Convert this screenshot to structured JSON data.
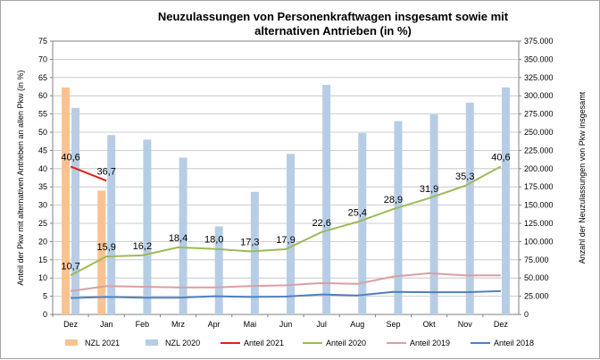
{
  "chart_data": {
    "type": "bar+line",
    "title_line1": "Neuzulassungen von Personenkraftwagen insgesamt sowie mit",
    "title_line2": "alternativen Antrieben (in %)",
    "y_left_label": "Anteil der Pkw mit alternativen Antrieben an allen Pkw (in %)",
    "y_right_label": "Anzahl der Neuzulassungen von Pkw insgesamt",
    "y_left_ticks": [
      "0",
      "5",
      "10",
      "15",
      "20",
      "25",
      "30",
      "35",
      "40",
      "45",
      "50",
      "55",
      "60",
      "65",
      "70",
      "75"
    ],
    "y_right_ticks": [
      "0",
      "25.000",
      "50.000",
      "75.000",
      "100.000",
      "125.000",
      "150.000",
      "175.000",
      "200.000",
      "225.000",
      "250.000",
      "275.000",
      "300.000",
      "325.000",
      "350.000",
      "375.000"
    ],
    "ylim_left": [
      0,
      75
    ],
    "ylim_right": [
      0,
      375000
    ],
    "grid": true,
    "legend_position": "bottom",
    "categories": [
      "Dez",
      "Jan",
      "Feb",
      "Mrz",
      "Apr",
      "Mai",
      "Jun",
      "Jul",
      "Aug",
      "Sep",
      "Okt",
      "Nov",
      "Dez"
    ],
    "bars": [
      {
        "name": "NZL 2021",
        "color": "#f9c290",
        "axis": "right",
        "values": [
          311400,
          169800,
          null,
          null,
          null,
          null,
          null,
          null,
          null,
          null,
          null,
          null,
          null
        ]
      },
      {
        "name": "NZL 2020",
        "color": "#b7cde6",
        "axis": "right",
        "values": [
          283300,
          246000,
          239900,
          215100,
          120800,
          168100,
          220300,
          314900,
          248900,
          265200,
          274300,
          290600,
          311400
        ]
      }
    ],
    "lines": [
      {
        "name": "Anteil 2021",
        "color": "#e02020",
        "axis": "left",
        "values": [
          40.6,
          36.7,
          null,
          null,
          null,
          null,
          null,
          null,
          null,
          null,
          null,
          null,
          null
        ],
        "labels": [
          "40,6",
          "36,7",
          "",
          "",
          "",
          "",
          "",
          "",
          "",
          "",
          "",
          "",
          ""
        ]
      },
      {
        "name": "Anteil 2020",
        "color": "#9bbb59",
        "axis": "left",
        "values": [
          10.7,
          15.9,
          16.2,
          18.4,
          18.0,
          17.3,
          17.9,
          22.6,
          25.4,
          28.9,
          31.9,
          35.3,
          40.6
        ],
        "labels": [
          "10,7",
          "15,9",
          "16,2",
          "18,4",
          "18,0",
          "17,3",
          "17,9",
          "22,6",
          "25,4",
          "28,9",
          "31,9",
          "35,3",
          "40,6"
        ]
      },
      {
        "name": "Anteil 2019",
        "color": "#d9a0a0",
        "axis": "left",
        "values": [
          6.4,
          7.8,
          7.6,
          7.4,
          7.4,
          7.8,
          8.0,
          8.6,
          8.4,
          10.4,
          11.3,
          10.7,
          10.7
        ],
        "labels": []
      },
      {
        "name": "Anteil 2018",
        "color": "#4f81bd",
        "axis": "left",
        "values": [
          4.5,
          4.8,
          4.6,
          4.6,
          5.0,
          4.8,
          4.9,
          5.5,
          5.2,
          6.2,
          6.1,
          6.1,
          6.4
        ],
        "labels": []
      }
    ]
  }
}
